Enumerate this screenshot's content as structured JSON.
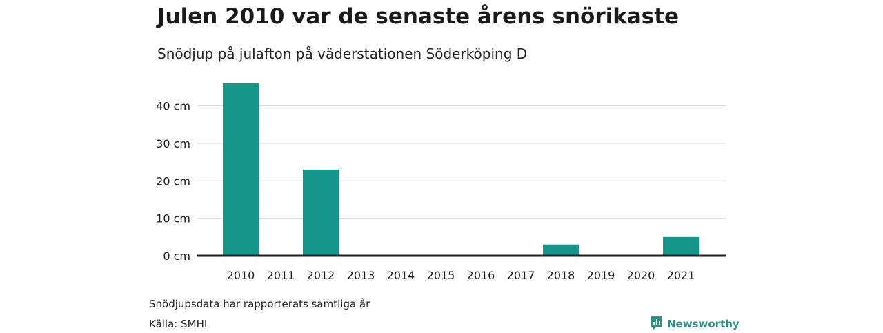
{
  "header": {
    "title": "Julen 2010 var de senaste årens snörikaste",
    "subtitle": "Snödjup på julafton på väderstationen Söderköping D"
  },
  "chart_data": {
    "type": "bar",
    "categories": [
      "2010",
      "2011",
      "2012",
      "2013",
      "2014",
      "2015",
      "2016",
      "2017",
      "2018",
      "2019",
      "2020",
      "2021"
    ],
    "values": [
      46,
      0,
      23,
      0,
      0,
      0,
      0,
      0,
      3,
      0,
      0,
      5
    ],
    "ylim": [
      0,
      48
    ],
    "yticks": [
      0,
      10,
      20,
      30,
      40
    ],
    "ytick_suffix": " cm",
    "grid": true,
    "bar_color": "#14978a"
  },
  "footer": {
    "note": "Snödjupsdata har rapporterats samtliga år",
    "source": "Källa: SMHI",
    "brand": "Newsworthy",
    "brand_icon": "newsworthy-logo-icon",
    "brand_color": "#2b8f82"
  }
}
